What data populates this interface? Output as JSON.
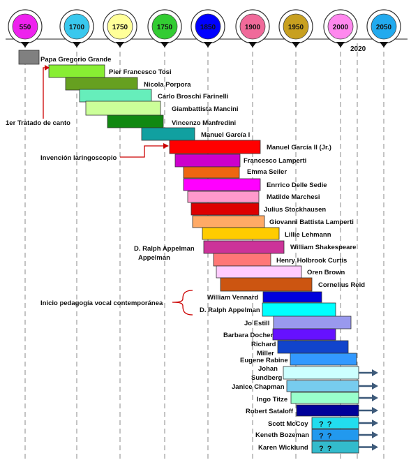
{
  "milestones": [
    {
      "label": "550",
      "color": "#ee22ee"
    },
    {
      "label": "1700",
      "color": "#39c8ee"
    },
    {
      "label": "1750",
      "color": "#ffff99"
    },
    {
      "label": "1750",
      "color": "#33cc33"
    },
    {
      "label": "1850",
      "color": "#0000ff"
    },
    {
      "label": "1900",
      "color": "#f06a9a"
    },
    {
      "label": "1950",
      "color": "#c8a020"
    },
    {
      "label": "2000",
      "color": "#ff88ee"
    },
    {
      "label": "2050",
      "color": "#22aaee"
    }
  ],
  "year_marker": "2020",
  "people": [
    {
      "name": "Papa Gregorio Grande",
      "color": "#808080"
    },
    {
      "name": "Pier Francesco Tosi",
      "color": "#88ee33"
    },
    {
      "name": "Nicola Porpora",
      "color": "#66a020"
    },
    {
      "name": "Carlo Broschi Farinelli",
      "color": "#66eebb"
    },
    {
      "name": "Giambattista Mancini",
      "color": "#ccff99"
    },
    {
      "name": "Vincenzo Manfredini",
      "color": "#118811"
    },
    {
      "name": "Manuel García I",
      "color": "#11a0a0"
    },
    {
      "name": "Manuel García II (Jr.)",
      "color": "#ff0000"
    },
    {
      "name": "Francesco Lamperti",
      "color": "#cc00cc"
    },
    {
      "name": "Emma Seiler",
      "color": "#ee6611"
    },
    {
      "name": "Enrrico Delle Sedie",
      "color": "#ff00ff"
    },
    {
      "name": "Matilde Marchesi",
      "color": "#ff99cc"
    },
    {
      "name": "Julius Stockhausen",
      "color": "#dd0000"
    },
    {
      "name": "Giovanni Battista Lamperti",
      "color": "#ffaa66"
    },
    {
      "name": "Lillie Lehmann",
      "color": "#ffcc00"
    },
    {
      "name": "William Shakespeare",
      "color": "#cc3399"
    },
    {
      "name": "Henry Holbrook Curtis",
      "color": "#ff7777"
    },
    {
      "name": "Oren Brown",
      "color": "#ffccff"
    },
    {
      "name": "Cornelius Reid",
      "color": "#cc5511"
    },
    {
      "name": "William Vennard",
      "color": "#0000dd"
    },
    {
      "name": "D. Ralph Appelman",
      "color": "#00ffff"
    },
    {
      "name": "Jo Estill",
      "color": "#9999ee"
    },
    {
      "name": "Barbara Docher",
      "color": "#6611ff"
    },
    {
      "name": "Richard Miller",
      "color": "#1144cc"
    },
    {
      "name": "Eugene Rabine",
      "color": "#3399ff"
    },
    {
      "name": "Johan Sundberg",
      "color": "#ccffff"
    },
    {
      "name": "Janice Chapman",
      "color": "#77ccee"
    },
    {
      "name": "Ingo Titze",
      "color": "#99ffcc"
    },
    {
      "name": "Robert Sataloff",
      "color": "#000099"
    },
    {
      "name": "Scott McCoy",
      "color": "#22ddee",
      "note": "? ?"
    },
    {
      "name": "Keneth Bozeman",
      "color": "#2299ee",
      "note": "? ?"
    },
    {
      "name": "Karen Wicklund",
      "color": "#33bbcc",
      "note": "? ?"
    }
  ],
  "annotations": {
    "tratado": "1er Tratado de canto",
    "laringoscopio": "Invención laringoscopio",
    "appelman_side": "D. Ralph Appelman",
    "contemporanea": "Inicio pedagogía vocal contemporánea"
  },
  "colors": {
    "arrow": "#3d5a7a",
    "bracket": "#cc0000",
    "gridline": "#888888",
    "bar_border": "#333333"
  }
}
